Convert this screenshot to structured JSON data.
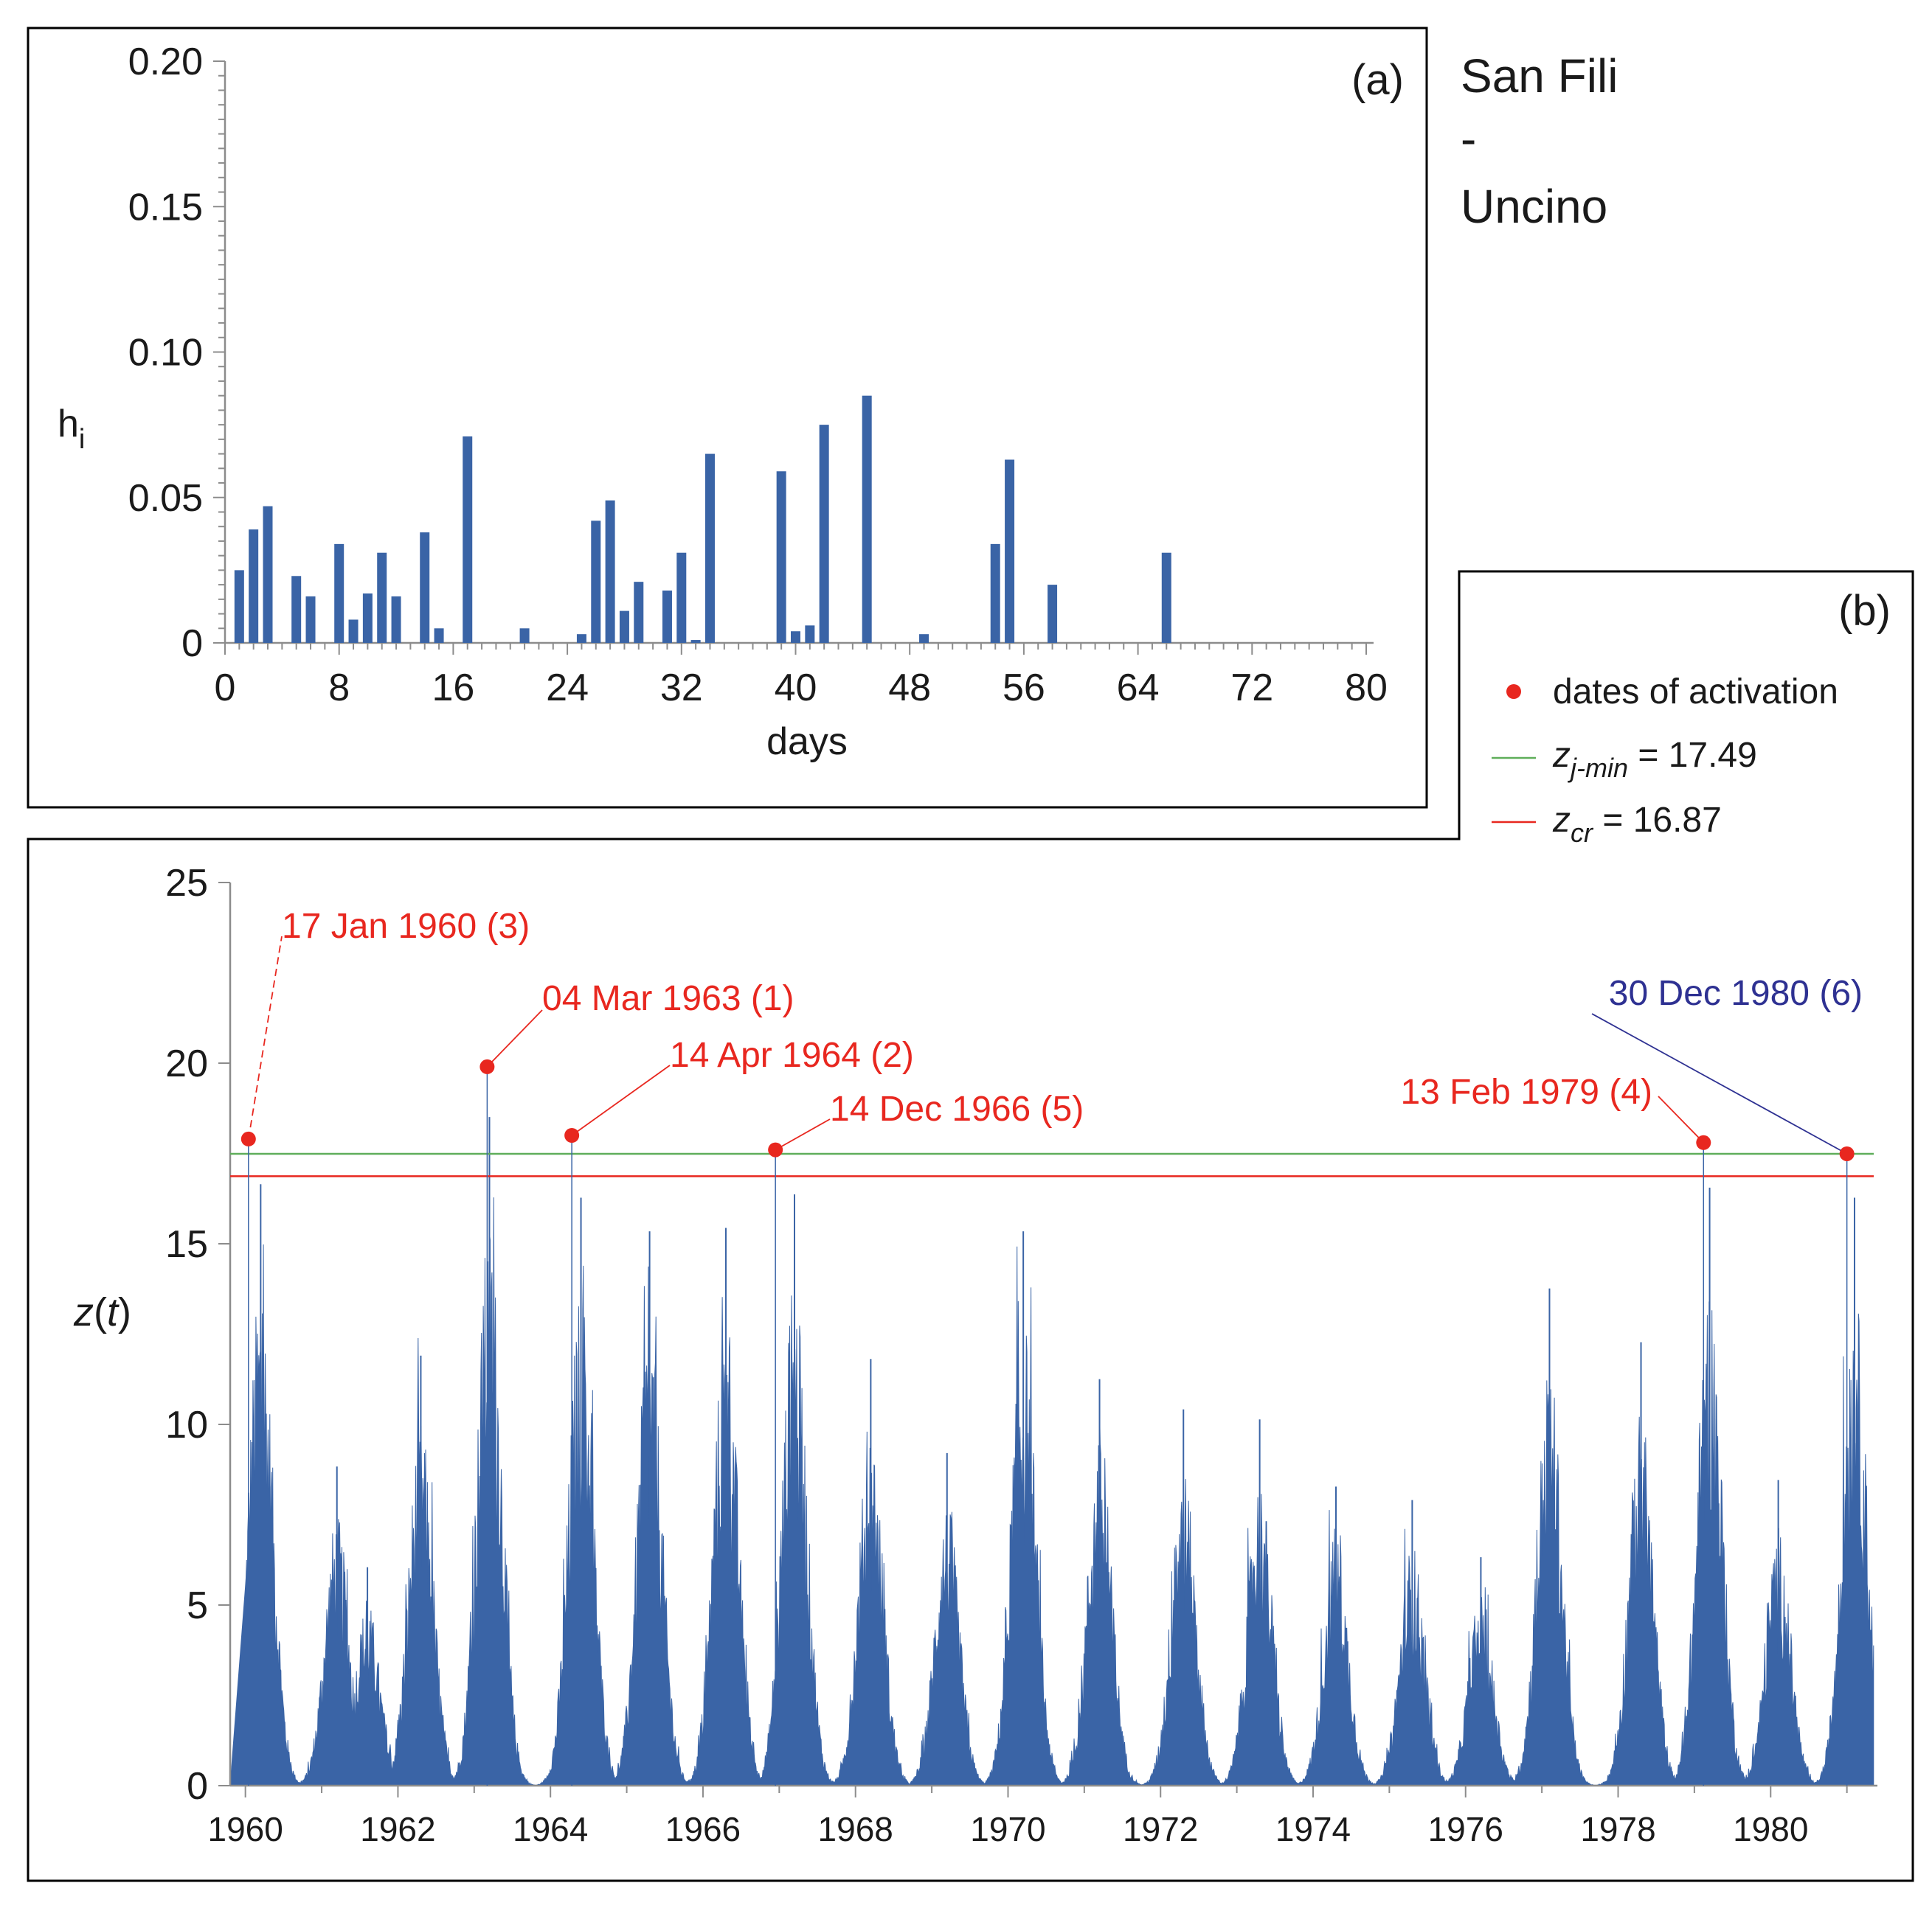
{
  "chart_data": [
    {
      "panel": "(a)",
      "type": "bar",
      "xlabel": "days",
      "ylabel": "h",
      "ylabel_sub": "i",
      "xlim": [
        0,
        80
      ],
      "ylim": [
        0,
        0.2
      ],
      "x_ticks": [
        0,
        8,
        16,
        24,
        32,
        40,
        48,
        56,
        64,
        72,
        80
      ],
      "y_ticks": [
        0,
        0.05,
        0.1,
        0.15,
        0.2
      ],
      "y_tick_labels": [
        "0",
        "0.05",
        "0.10",
        "0.15",
        "0.20"
      ],
      "x": [
        1,
        2,
        3,
        5,
        6,
        8,
        9,
        10,
        11,
        12,
        14,
        15,
        17,
        21,
        25,
        26,
        27,
        28,
        29,
        31,
        32,
        33,
        34,
        39,
        40,
        41,
        42,
        45,
        49,
        54,
        55,
        58,
        66
      ],
      "values": [
        0.025,
        0.039,
        0.047,
        0.023,
        0.016,
        0.034,
        0.008,
        0.017,
        0.031,
        0.016,
        0.038,
        0.005,
        0.071,
        0.005,
        0.003,
        0.042,
        0.049,
        0.011,
        0.021,
        0.018,
        0.031,
        0.001,
        0.065,
        0.059,
        0.004,
        0.006,
        0.075,
        0.085,
        0.003,
        0.034,
        0.063,
        0.02,
        0.031
      ],
      "bar_color": "#3a64a6"
    },
    {
      "panel": "(b)",
      "type": "area",
      "ylabel": "z(t)",
      "xlim": [
        1959.8,
        1981.4
      ],
      "ylim": [
        0,
        25
      ],
      "x_ticks": [
        1960,
        1962,
        1964,
        1966,
        1968,
        1970,
        1972,
        1974,
        1976,
        1978,
        1980
      ],
      "y_ticks": [
        0,
        5,
        10,
        15,
        20,
        25
      ],
      "series_color": "#3a64a6",
      "seasonal_peaks": [
        {
          "t": 1960.2,
          "peak": 17.9
        },
        {
          "t": 1961.2,
          "peak": 9.5
        },
        {
          "t": 1961.6,
          "peak": 6.5
        },
        {
          "t": 1962.3,
          "peak": 12.8
        },
        {
          "t": 1963.2,
          "peak": 19.9
        },
        {
          "t": 1964.4,
          "peak": 17.5
        },
        {
          "t": 1965.3,
          "peak": 16.5
        },
        {
          "t": 1966.3,
          "peak": 16.6
        },
        {
          "t": 1967.2,
          "peak": 17.6
        },
        {
          "t": 1968.2,
          "peak": 12.7
        },
        {
          "t": 1969.2,
          "peak": 9.9
        },
        {
          "t": 1970.2,
          "peak": 16.5
        },
        {
          "t": 1971.2,
          "peak": 12.1
        },
        {
          "t": 1972.3,
          "peak": 11.2
        },
        {
          "t": 1973.3,
          "peak": 10.9
        },
        {
          "t": 1974.3,
          "peak": 8.9
        },
        {
          "t": 1975.3,
          "peak": 8.5
        },
        {
          "t": 1976.2,
          "peak": 6.8
        },
        {
          "t": 1977.1,
          "peak": 14.8
        },
        {
          "t": 1978.3,
          "peak": 13.2
        },
        {
          "t": 1979.2,
          "peak": 17.8
        },
        {
          "t": 1980.1,
          "peak": 9.1
        },
        {
          "t": 1981.1,
          "peak": 17.5
        }
      ],
      "thresholds": [
        {
          "name": "z_j-min",
          "value": 17.49,
          "color": "#5fae5a"
        },
        {
          "name": "z_cr",
          "value": 16.87,
          "color": "#e8271f"
        }
      ],
      "events": [
        {
          "label": "17 Jan 1960 (3)",
          "t": 1960.04,
          "z": 17.9,
          "color": "#e8271f"
        },
        {
          "label": "04 Mar 1963 (1)",
          "t": 1963.17,
          "z": 19.9,
          "color": "#e8271f"
        },
        {
          "label": "14 Apr 1964 (2)",
          "t": 1964.28,
          "z": 18.0,
          "color": "#e8271f"
        },
        {
          "label": "14 Dec 1966 (5)",
          "t": 1966.95,
          "z": 17.6,
          "color": "#e8271f"
        },
        {
          "label": "13 Feb 1979 (4)",
          "t": 1979.12,
          "z": 17.8,
          "color": "#e8271f"
        },
        {
          "label": "30 Dec 1980 (6)",
          "t": 1981.0,
          "z": 17.49,
          "color": "#2e3192"
        }
      ]
    }
  ],
  "panel_a": {
    "tag": "(a)",
    "xlabel": "days",
    "ylabel": "h",
    "ylabel_sub": "i"
  },
  "panel_b": {
    "tag": "(b)",
    "ylabel_z": "z",
    "ylabel_open": "(",
    "ylabel_t": "t",
    "ylabel_close": ")"
  },
  "site": {
    "line1": "San Fili",
    "line2": "-",
    "line3": "Uncino"
  },
  "legend": {
    "dates_label": "dates of activation",
    "zjmin_main": "z",
    "zjmin_sub": "j-min",
    "zjmin_value": " = 17.49",
    "zcr_main": "z",
    "zcr_sub": "cr",
    "zcr_value": " = 16.87"
  },
  "colors": {
    "bar": "#3a64a6",
    "red": "#e8271f",
    "green": "#5fae5a",
    "navy": "#2e3192",
    "axis": "#8c8c8c"
  }
}
